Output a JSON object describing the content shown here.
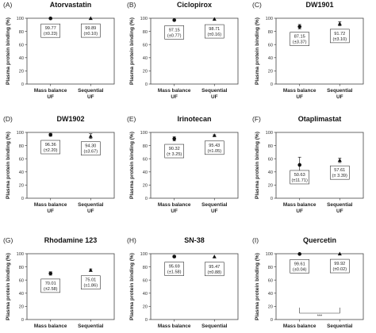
{
  "figure": {
    "ylabel": "Plasma protein binding (%)",
    "yticks": [
      "0",
      "20",
      "40",
      "60",
      "80",
      "100"
    ],
    "xticks": [
      [
        "Mass balance",
        "UF"
      ],
      [
        "Sequential",
        "UF"
      ]
    ],
    "significance_marker": "***"
  },
  "chart_data": [
    {
      "type": "scatter",
      "letter": "(A)",
      "title": "Atorvastatin",
      "ylim": [
        0,
        100
      ],
      "categories": [
        "Mass balance UF",
        "Sequential UF"
      ],
      "values": [
        99.77,
        99.89
      ],
      "sd": [
        0.23,
        0.1
      ],
      "labels": [
        [
          "99.77",
          "(±0.23)"
        ],
        [
          "99.89",
          "(±0.10)"
        ]
      ]
    },
    {
      "type": "scatter",
      "letter": "(B)",
      "title": "Ciclopirox",
      "ylim": [
        0,
        100
      ],
      "categories": [
        "Mass balance UF",
        "Sequential UF"
      ],
      "values": [
        97.15,
        98.71
      ],
      "sd": [
        0.77,
        0.16
      ],
      "labels": [
        [
          "97.15",
          "(±0.77)"
        ],
        [
          "98.71",
          "(±0.16)"
        ]
      ]
    },
    {
      "type": "scatter",
      "letter": "(C)",
      "title": "DW1901",
      "ylim": [
        0,
        100
      ],
      "categories": [
        "Mass balance UF",
        "Sequential UF"
      ],
      "values": [
        87.15,
        91.72
      ],
      "sd": [
        3.37,
        3.1
      ],
      "labels": [
        [
          "87.15",
          "(±3.37)"
        ],
        [
          "91.72",
          "(±3.10)"
        ]
      ]
    },
    {
      "type": "scatter",
      "letter": "(D)",
      "title": "DW1902",
      "ylim": [
        0,
        100
      ],
      "categories": [
        "Mass balance UF",
        "Sequential UF"
      ],
      "values": [
        96.36,
        94.3
      ],
      "sd": [
        2.2,
        3.67
      ],
      "labels": [
        [
          "96.36",
          "(±2.20)"
        ],
        [
          "94.30",
          "(±3.67)"
        ]
      ]
    },
    {
      "type": "scatter",
      "letter": "(E)",
      "title": "Irinotecan",
      "ylim": [
        0,
        100
      ],
      "categories": [
        "Mass balance UF",
        "Sequential UF"
      ],
      "values": [
        90.32,
        95.43
      ],
      "sd": [
        3.25,
        1.05
      ],
      "labels": [
        [
          "90.32",
          "(± 3.25)"
        ],
        [
          "95.43",
          "(±1.05)"
        ]
      ]
    },
    {
      "type": "scatter",
      "letter": "(F)",
      "title": "Otaplimastat",
      "ylim": [
        0,
        100
      ],
      "categories": [
        "Mass balance UF",
        "Sequential UF"
      ],
      "values": [
        50.63,
        57.61
      ],
      "sd": [
        11.71,
        3.39
      ],
      "labels": [
        [
          "50.63",
          "(±11.71)"
        ],
        [
          "57.61",
          "(± 3.39)"
        ]
      ]
    },
    {
      "type": "scatter",
      "letter": "(G)",
      "title": "Rhodamine 123",
      "ylim": [
        0,
        100
      ],
      "categories": [
        "Mass balance UF",
        "Sequential UF"
      ],
      "values": [
        70.01,
        75.01
      ],
      "sd": [
        2.58,
        1.86
      ],
      "labels": [
        [
          "70.01",
          "(±2.58)"
        ],
        [
          "75.01",
          "(±1.86)"
        ]
      ]
    },
    {
      "type": "scatter",
      "letter": "(H)",
      "title": "SN-38",
      "ylim": [
        0,
        100
      ],
      "categories": [
        "Mass balance UF",
        "Sequential UF"
      ],
      "values": [
        95.69,
        95.47
      ],
      "sd": [
        1.58,
        0.88
      ],
      "labels": [
        [
          "95.69",
          "(±1.58)"
        ],
        [
          "95.47",
          "(±0.88)"
        ]
      ]
    },
    {
      "type": "scatter",
      "letter": "(I)",
      "title": "Quercetin",
      "ylim": [
        0,
        100
      ],
      "categories": [
        "Mass balance UF",
        "Sequential UF"
      ],
      "values": [
        99.61,
        99.92
      ],
      "sd": [
        0.04,
        0.02
      ],
      "labels": [
        [
          "99.61",
          "(±0.04)"
        ],
        [
          "99.92",
          "(±0.02)"
        ]
      ],
      "significance": "***"
    }
  ]
}
